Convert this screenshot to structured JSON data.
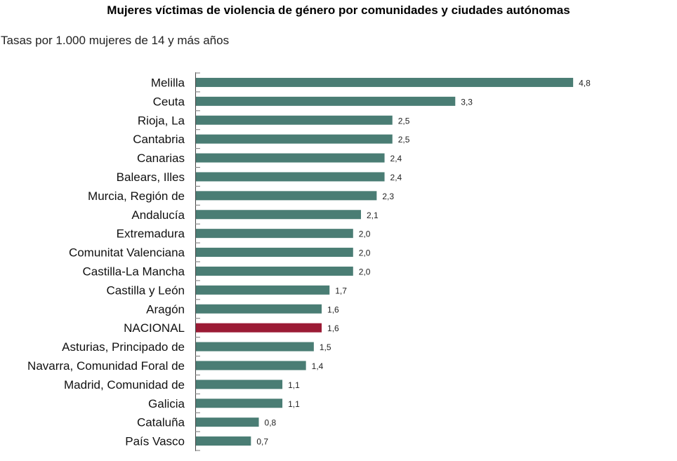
{
  "chart_data": {
    "type": "bar",
    "orientation": "horizontal",
    "title": "Mujeres víctimas de violencia de género por comunidades y ciudades autónomas",
    "subtitle": "Tasas por 1.000 mujeres de 14 y más años",
    "categories": [
      "Melilla",
      "Ceuta",
      "Rioja, La",
      "Cantabria",
      "Canarias",
      "Balears, Illes",
      "Murcia, Región de",
      "Andalucía",
      "Extremadura",
      "Comunitat Valenciana",
      "Castilla-La Mancha",
      "Castilla y León",
      "Aragón",
      "NACIONAL",
      "Asturias, Principado de",
      "Navarra, Comunidad Foral de",
      "Madrid, Comunidad de",
      "Galicia",
      "Cataluña",
      "País Vasco"
    ],
    "values": [
      4.8,
      3.3,
      2.5,
      2.5,
      2.4,
      2.4,
      2.3,
      2.1,
      2.0,
      2.0,
      2.0,
      1.7,
      1.6,
      1.6,
      1.5,
      1.4,
      1.1,
      1.1,
      0.8,
      0.7
    ],
    "data_labels": [
      "4,8",
      "3,3",
      "2,5",
      "2,5",
      "2,4",
      "2,4",
      "2,3",
      "2,1",
      "2,0",
      "2,0",
      "2,0",
      "1,7",
      "1,6",
      "1,6",
      "1,5",
      "1,4",
      "1,1",
      "1,1",
      "0,8",
      "0,7"
    ],
    "highlight_category": "NACIONAL",
    "colors": {
      "default": "#4a7d74",
      "highlight": "#9b1b35"
    },
    "xlim": [
      0,
      5
    ],
    "grid": false,
    "legend": "none"
  }
}
